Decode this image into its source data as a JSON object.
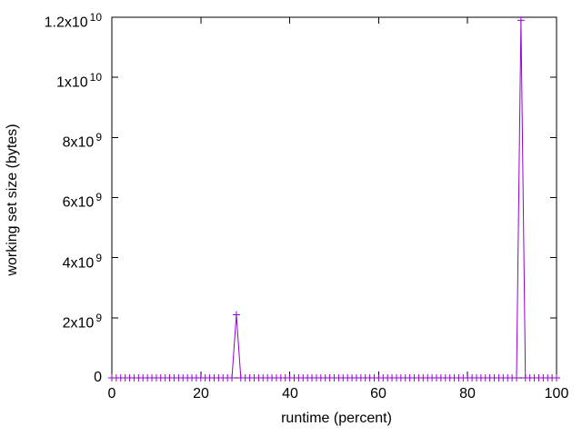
{
  "chart_data": {
    "type": "line",
    "style": "linespoints",
    "marker": "plus",
    "title": "",
    "xlabel": "runtime (percent)",
    "ylabel": "working set size (bytes)",
    "xlim": [
      0,
      100
    ],
    "ylim": [
      0,
      12000000000
    ],
    "grid": false,
    "legend": "none",
    "line_color": "#9400d3",
    "axis_color": "#000000",
    "x_ticks": [
      {
        "label": "0",
        "value": 0
      },
      {
        "label": "20",
        "value": 20
      },
      {
        "label": "40",
        "value": 40
      },
      {
        "label": "60",
        "value": 60
      },
      {
        "label": "80",
        "value": 80
      },
      {
        "label": "100",
        "value": 100
      }
    ],
    "y_ticks": [
      {
        "base": "0",
        "exp": "",
        "value": 0
      },
      {
        "base": "2x10",
        "exp": "9",
        "value": 2000000000
      },
      {
        "base": "4x10",
        "exp": "9",
        "value": 4000000000
      },
      {
        "base": "6x10",
        "exp": "9",
        "value": 6000000000
      },
      {
        "base": "8x10",
        "exp": "9",
        "value": 8000000000
      },
      {
        "base": "1x10",
        "exp": "10",
        "value": 10000000000
      },
      {
        "base": "1.2x10",
        "exp": "10",
        "value": 12000000000
      }
    ],
    "series": [
      {
        "name": "working set size",
        "x_min": 0,
        "x_max": 100,
        "x_step": 1,
        "baseline_y": 0,
        "peaks": [
          {
            "x": 28,
            "y": 2100000000
          },
          {
            "x": 92,
            "y": 11900000000
          }
        ]
      }
    ]
  }
}
